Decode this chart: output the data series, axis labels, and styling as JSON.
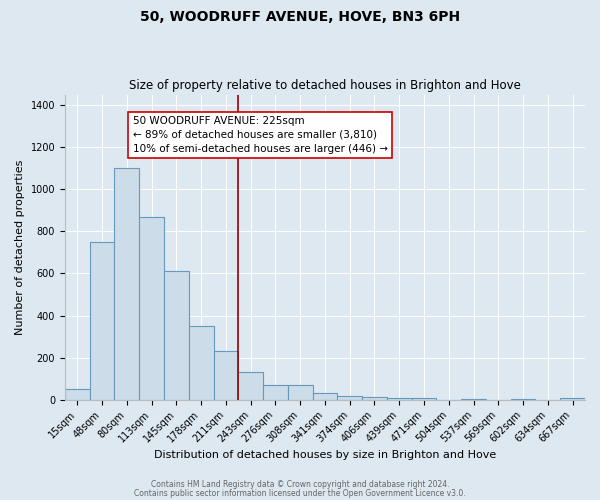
{
  "title": "50, WOODRUFF AVENUE, HOVE, BN3 6PH",
  "subtitle": "Size of property relative to detached houses in Brighton and Hove",
  "xlabel": "Distribution of detached houses by size in Brighton and Hove",
  "ylabel": "Number of detached properties",
  "bar_labels": [
    "15sqm",
    "48sqm",
    "80sqm",
    "113sqm",
    "145sqm",
    "178sqm",
    "211sqm",
    "243sqm",
    "276sqm",
    "308sqm",
    "341sqm",
    "374sqm",
    "406sqm",
    "439sqm",
    "471sqm",
    "504sqm",
    "537sqm",
    "569sqm",
    "602sqm",
    "634sqm",
    "667sqm"
  ],
  "bar_values": [
    50,
    750,
    1100,
    870,
    610,
    350,
    230,
    130,
    70,
    70,
    30,
    20,
    15,
    10,
    7,
    0,
    5,
    0,
    5,
    0,
    10
  ],
  "bar_color": "#ccdce8",
  "bar_edge_color": "#6699bb",
  "bar_linewidth": 0.8,
  "vline_index": 6.5,
  "vline_color": "#990000",
  "vline_linewidth": 1.2,
  "annotation_text": "50 WOODRUFF AVENUE: 225sqm\n← 89% of detached houses are smaller (3,810)\n10% of semi-detached houses are larger (446) →",
  "annotation_box_color": "#ffffff",
  "annotation_box_edge": "#cc0000",
  "ylim": [
    0,
    1450
  ],
  "yticks": [
    0,
    200,
    400,
    600,
    800,
    1000,
    1200,
    1400
  ],
  "background_color": "#dde8f0",
  "plot_background": "#dde8f0",
  "grid_color": "#ffffff",
  "footer1": "Contains HM Land Registry data © Crown copyright and database right 2024.",
  "footer2": "Contains public sector information licensed under the Open Government Licence v3.0.",
  "title_fontsize": 10,
  "subtitle_fontsize": 8.5,
  "ylabel_fontsize": 8,
  "xlabel_fontsize": 8,
  "tick_fontsize": 7,
  "annot_fontsize": 7.5
}
